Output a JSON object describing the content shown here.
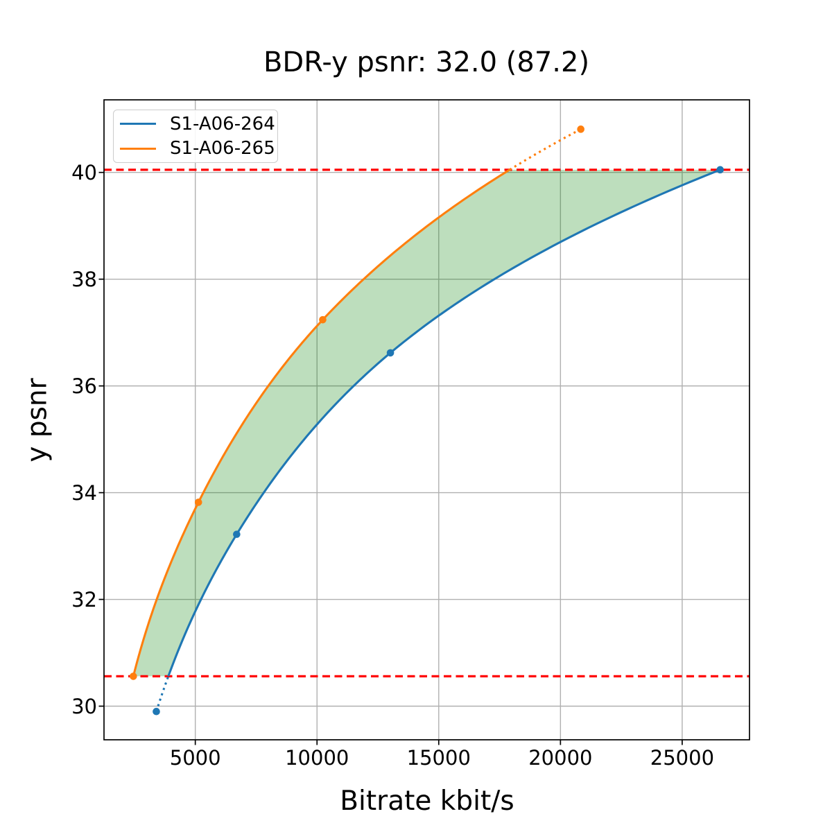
{
  "chart_data": {
    "type": "line",
    "title": "BDR-y psnr: 32.0 (87.2)",
    "xlabel": "Bitrate kbit/s",
    "ylabel": "y psnr",
    "xlim": [
      1250,
      27765
    ],
    "ylim": [
      29.37,
      41.36
    ],
    "xticks": [
      5000,
      10000,
      15000,
      20000,
      25000
    ],
    "yticks": [
      30,
      32,
      34,
      36,
      38,
      40
    ],
    "grid": true,
    "legend_position": "upper-left",
    "series": [
      {
        "name": "S1-A06-264",
        "color": "#1f77b4",
        "marker": "circle",
        "points": [
          [
            3400,
            29.9
          ],
          [
            6700,
            33.22
          ],
          [
            13015,
            36.62
          ],
          [
            26560,
            40.05
          ]
        ]
      },
      {
        "name": "S1-A06-265",
        "color": "#ff7f0e",
        "marker": "circle",
        "points": [
          [
            2455,
            30.56
          ],
          [
            5130,
            33.82
          ],
          [
            10235,
            37.24
          ],
          [
            20835,
            40.81
          ]
        ]
      }
    ],
    "hlines": [
      {
        "y": 40.05,
        "color": "#ff0000",
        "style": "dashed"
      },
      {
        "y": 30.56,
        "color": "#ff0000",
        "style": "dashed"
      }
    ],
    "shaded_region": {
      "between": [
        "S1-A06-265",
        "S1-A06-264"
      ],
      "y_range": [
        30.56,
        40.05
      ],
      "color": "#008000",
      "alpha": 0.26
    },
    "styles": {
      "grid_color": "#b0b0b0",
      "spine_color": "#000000",
      "tick_color": "#000000",
      "interp": "pchip-log-x",
      "outside_interval_linestyle": "dotted"
    }
  }
}
